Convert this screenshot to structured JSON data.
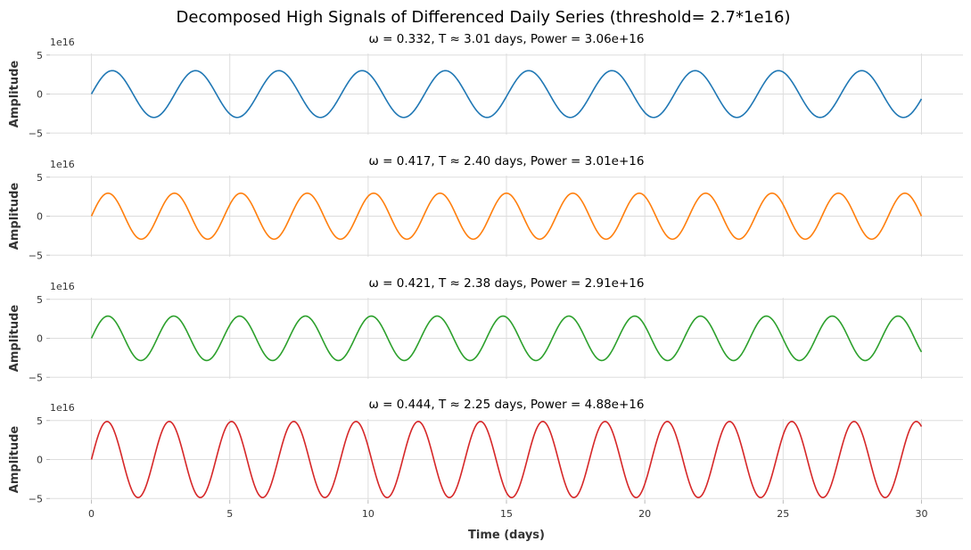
{
  "chart_data": {
    "type": "line",
    "title": "Decomposed High Signals of Differenced Daily Series (threshold= 2.7*1e16)",
    "xlabel": "Time (days)",
    "xlim": [
      -1.5,
      31.5
    ],
    "xticks": [
      0,
      5,
      10,
      15,
      20,
      25,
      30
    ],
    "x_range": [
      0,
      30
    ],
    "panels": [
      {
        "title": "ω = 0.332, T ≈ 3.01 days, Power = 3.06e+16",
        "ylabel": "Amplitude",
        "offset_label": "1e16",
        "ylim": [
          -5.2,
          5.2
        ],
        "yticks": [
          -5,
          0,
          5
        ],
        "ytick_labels": [
          "−5",
          "0",
          "5"
        ],
        "series": {
          "omega": 0.332,
          "period_days": 3.01,
          "amplitude": 3.0,
          "color": "#1f77b4"
        }
      },
      {
        "title": "ω = 0.417, T ≈ 2.40 days, Power = 3.01e+16",
        "ylabel": "Amplitude",
        "offset_label": "1e16",
        "ylim": [
          -5.2,
          5.2
        ],
        "yticks": [
          -5,
          0,
          5
        ],
        "ytick_labels": [
          "−5",
          "0",
          "5"
        ],
        "series": {
          "omega": 0.417,
          "period_days": 2.4,
          "amplitude": 2.95,
          "color": "#ff7f0e"
        }
      },
      {
        "title": "ω = 0.421, T ≈ 2.38 days, Power = 2.91e+16",
        "ylabel": "Amplitude",
        "offset_label": "1e16",
        "ylim": [
          -5.2,
          5.2
        ],
        "yticks": [
          -5,
          0,
          5
        ],
        "ytick_labels": [
          "−5",
          "0",
          "5"
        ],
        "series": {
          "omega": 0.421,
          "period_days": 2.38,
          "amplitude": 2.85,
          "color": "#2ca02c"
        }
      },
      {
        "title": "ω = 0.444, T ≈ 2.25 days, Power = 4.88e+16",
        "ylabel": "Amplitude",
        "offset_label": "1e16",
        "ylim": [
          -5.2,
          5.2
        ],
        "yticks": [
          -5,
          0,
          5
        ],
        "ytick_labels": [
          "−5",
          "0",
          "5"
        ],
        "series": {
          "omega": 0.444,
          "period_days": 2.25,
          "amplitude": 4.88,
          "color": "#d62728"
        }
      }
    ],
    "grid": true,
    "legend": "none"
  }
}
